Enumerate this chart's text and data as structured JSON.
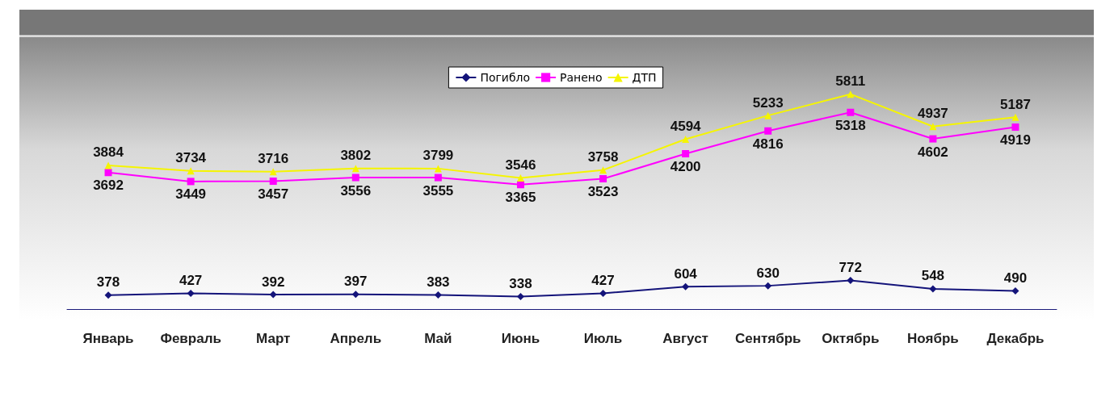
{
  "chart_data": {
    "type": "line",
    "categories": [
      "Январь",
      "Февраль",
      "Март",
      "Апрель",
      "Май",
      "Июнь",
      "Июль",
      "Август",
      "Сентябрь",
      "Октябрь",
      "Ноябрь",
      "Декабрь"
    ],
    "series": [
      {
        "name": "Погибло",
        "color": "#14147a",
        "marker": "diamond",
        "values": [
          378,
          427,
          392,
          397,
          383,
          338,
          427,
          604,
          630,
          772,
          548,
          490
        ]
      },
      {
        "name": "Ранено",
        "color": "#ff00ff",
        "marker": "square",
        "values": [
          3692,
          3449,
          3457,
          3556,
          3555,
          3365,
          3523,
          4200,
          4816,
          5318,
          4602,
          4919
        ]
      },
      {
        "name": "ДТП",
        "color": "#f5f500",
        "marker": "triangle",
        "values": [
          3884,
          3734,
          3716,
          3802,
          3799,
          3546,
          3758,
          4594,
          5233,
          5811,
          4937,
          5187
        ]
      }
    ],
    "data_labels": true,
    "legend": "top",
    "grid": false,
    "tick_labels": "x"
  }
}
